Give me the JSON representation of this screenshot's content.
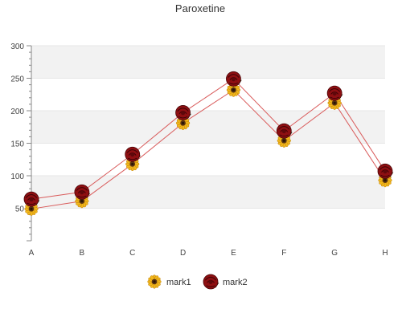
{
  "chart_data": {
    "type": "line",
    "title": "Paroxetine",
    "categories": [
      "A",
      "B",
      "C",
      "D",
      "E",
      "F",
      "G",
      "H"
    ],
    "ylim": [
      0,
      300
    ],
    "yticks": [
      50,
      100,
      150,
      200,
      250,
      300
    ],
    "grid": "horizontal bands",
    "legend_position": "bottom",
    "series": [
      {
        "name": "mark1",
        "marker": "sunflower-icon",
        "color": "#d95c5c",
        "values": [
          49,
          61,
          118,
          181,
          232,
          154,
          212,
          93
        ]
      },
      {
        "name": "mark2",
        "marker": "rose-icon",
        "color": "#d95c5c",
        "values": [
          64,
          75,
          133,
          197,
          249,
          169,
          227,
          107
        ]
      }
    ],
    "colors": {
      "line": "#d95c5c",
      "band": "#f2f2f2",
      "axis": "#888888"
    }
  }
}
